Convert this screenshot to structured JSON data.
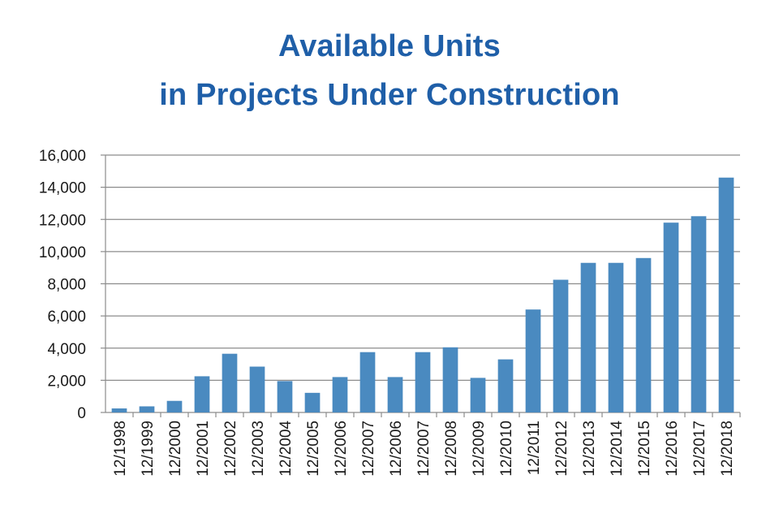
{
  "chart_data": {
    "type": "bar",
    "title_lines": [
      "Available Units",
      "in Projects Under Construction"
    ],
    "xlabel": "",
    "ylabel": "",
    "ylim": [
      0,
      16000
    ],
    "yticks": [
      0,
      2000,
      4000,
      6000,
      8000,
      10000,
      12000,
      14000,
      16000
    ],
    "ytick_labels": [
      "0",
      "2,000",
      "4,000",
      "6,000",
      "8,000",
      "10,000",
      "12,000",
      "14,000",
      "16,000"
    ],
    "grid": true,
    "bar_color": "#4a8ac0",
    "categories": [
      "12/1998",
      "12/1999",
      "12/2000",
      "12/2001",
      "12/2002",
      "12/2003",
      "12/2004",
      "12/2005",
      "12/2006",
      "12/2007",
      "12/2006",
      "12/2007",
      "12/2008",
      "12/2009",
      "12/2010",
      "12/2011",
      "12/2012",
      "12/2013",
      "12/2014",
      "12/2015",
      "12/2016",
      "12/2017",
      "12/2018"
    ],
    "values": [
      250,
      380,
      720,
      2250,
      3650,
      2850,
      1950,
      1220,
      2200,
      3750,
      2200,
      3750,
      4050,
      2150,
      3300,
      6400,
      8250,
      9300,
      9300,
      9600,
      11800,
      12200,
      14600
    ]
  }
}
